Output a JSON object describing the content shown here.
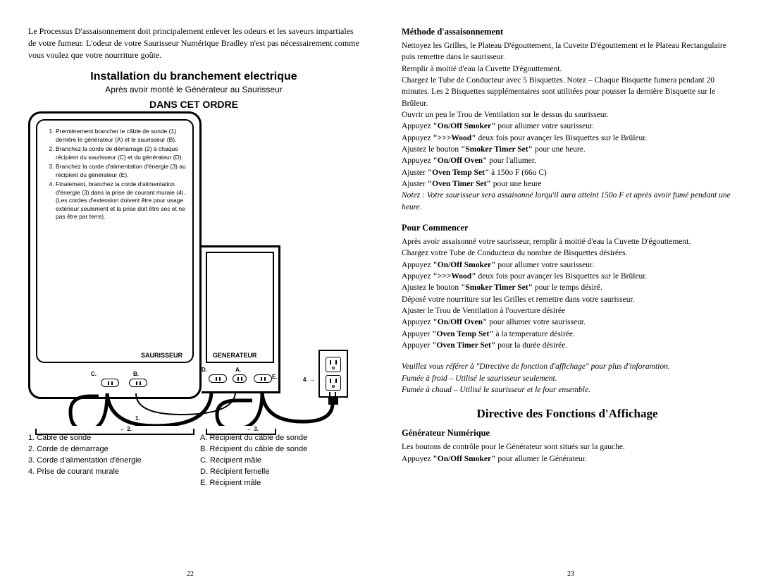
{
  "left": {
    "intro": "Le Processus D'assaisonnement doit principalement enlever les odeurs et les saveurs impartiales de votre fumeur. L'odeur de votre Saurisseur Numérique Bradley n'est pas nécessairement comme vous voulez que votre nourriture goûte.",
    "h_install": "Installation du branchement electrique",
    "h_sub": "Après avoir monté le Générateur au Saurisseur",
    "h_order": "DANS CET ORDRE",
    "steps": [
      "Premièrement brancher le câble de sonde (1) derrière le générateur (A) et le saurisseur (B).",
      "Branchez la corde de démarrage (2) à chaque récipient du saurisseur (C) et du générateur (D).",
      "Branchez la corde d'alimentation d'énergie (3) au récipient du générateur (E).",
      "Finalement, branchez la corde d'alimentation d'énergie (3) dans la prise de courant murale (4). (Les cordes d'extension doivent être pour usage extérieur seulement et la prise doit être sec et ne pas être par terre)."
    ],
    "lbl_saurisseur": "SAURISSEUR",
    "lbl_generateur": "GENERATEUR",
    "port_c": "C.",
    "port_b": "B.",
    "port_d": "D.",
    "port_a": "A.",
    "port_e": "E.",
    "num_1": "1.",
    "num_2": "← 2.",
    "num_3": "← 3.",
    "num_4": "4. →",
    "legend_left": [
      "1. Câble de sonde",
      "2. Corde de démarrage",
      "3. Corde d'alimentation d'énergie",
      "4. Prise de courant murale"
    ],
    "legend_right": [
      "A. Récipient du câble de sonde",
      "B. Récipient du câble de sonde",
      "C. Récipient mâle",
      "D. Récipient femelle",
      "E. Récipient mâle"
    ],
    "page_num": "22"
  },
  "right": {
    "h_method": "Méthode d'assaisonnement",
    "method_lines": [
      "Nettoyez les Grilles, le Plateau D'égouttement, la Cuvette D'égouttement et le Plateau Rectangulaire puis remettre dans le saurisseur.",
      "Remplir à moitié d'eau la Cuvette D'égouttement.",
      "Chargez le Tube de Conducteur avec 5 Bisquettes.  Notez – Chaque Bisquette fumera pendant 20 minutes.  Les 2 Bisquettes supplémentaires sont utilitées pour pousser la dernière Bisquette sur le Brûleur.",
      "Ouvrir un peu le Trou de Ventilation sur le dessus du saurisseur.",
      "Appuyez <strong>\"On/Off Smoker\"</strong> pour allumer votre saurisseur.",
      "Appuyez <strong>\">>>Wood\"</strong> deux fois pour avançer les Bisquettes sur le Brûleur.",
      "Ajustez le bouton <strong>\"Smoker Timer Set\"</strong> pour une heure.",
      "Appuyez <strong>\"On/Off Oven\"</strong> pour l'allumer.",
      "Ajuster <strong>\"Oven Temp Set\"</strong> à 150o F (66o C)",
      "Ajuster <strong>\"Oven Timer Set\"</strong> pour une heure",
      "<em>Notez :  Votre saurisseur sera assaisonné lorqu'il aura atteint 150o F et après avoir fumé pendant une heure.</em>"
    ],
    "h_start": "Pour Commencer",
    "start_lines": [
      "Après avoir assaisonné votre saurisseur, remplir à moitié d'eau la Cuvette D'égouttement.",
      "Chargez votre Tube de Conducteur du nombre de Bisquettes désirées.",
      "Appuyez <strong>\"On/Off Smoker\"</strong> pour allumer votre saurisseur.",
      "Appuyez <strong>\">>>Wood\"</strong> deux fois pour avançer les Bisquettes sur le Brûleur.",
      "Ajustez le bouton <strong>\"Smoker Timer Set\"</strong> pour le temps désiré.",
      "Déposé votre nourriture sur les Grilles et remettre dans votre saurisseur.",
      "Ajuster le Trou de Ventilation à l'ouverture désirée",
      "Appuyez <strong>\"On/Off Oven\"</strong> pour allumer votre saurisseur.",
      "Appuyer <strong>\"Oven Temp Set\"</strong> à la temperature désirée.",
      "Appuyer <strong>\"Oven Timer Set\"</strong> pour la durée désirée."
    ],
    "ref_lines": [
      "<em>Veuillez vous référer à \"Directive de fonction d'affichage\" pour plus d'inforamtion.</em>",
      "<em>Fumée à froid – Utilisé le saurisseur seulement.</em>",
      "<em>Fumée à chaud – Utilisé le saurisseur et le four ensemble.</em>"
    ],
    "h_directive": "Directive des Fonctions d'Affichage",
    "h_gen": "Générateur Numérique",
    "gen_lines": [
      "Les boutons de contrôle pour le Générateur sont situés sur la gauche.",
      "Appuyez <strong>\"On/Off Smoker\"</strong> pour allumer le Générateur."
    ],
    "page_num": "23"
  },
  "colors": {
    "text": "#000000",
    "bg": "#ffffff"
  }
}
